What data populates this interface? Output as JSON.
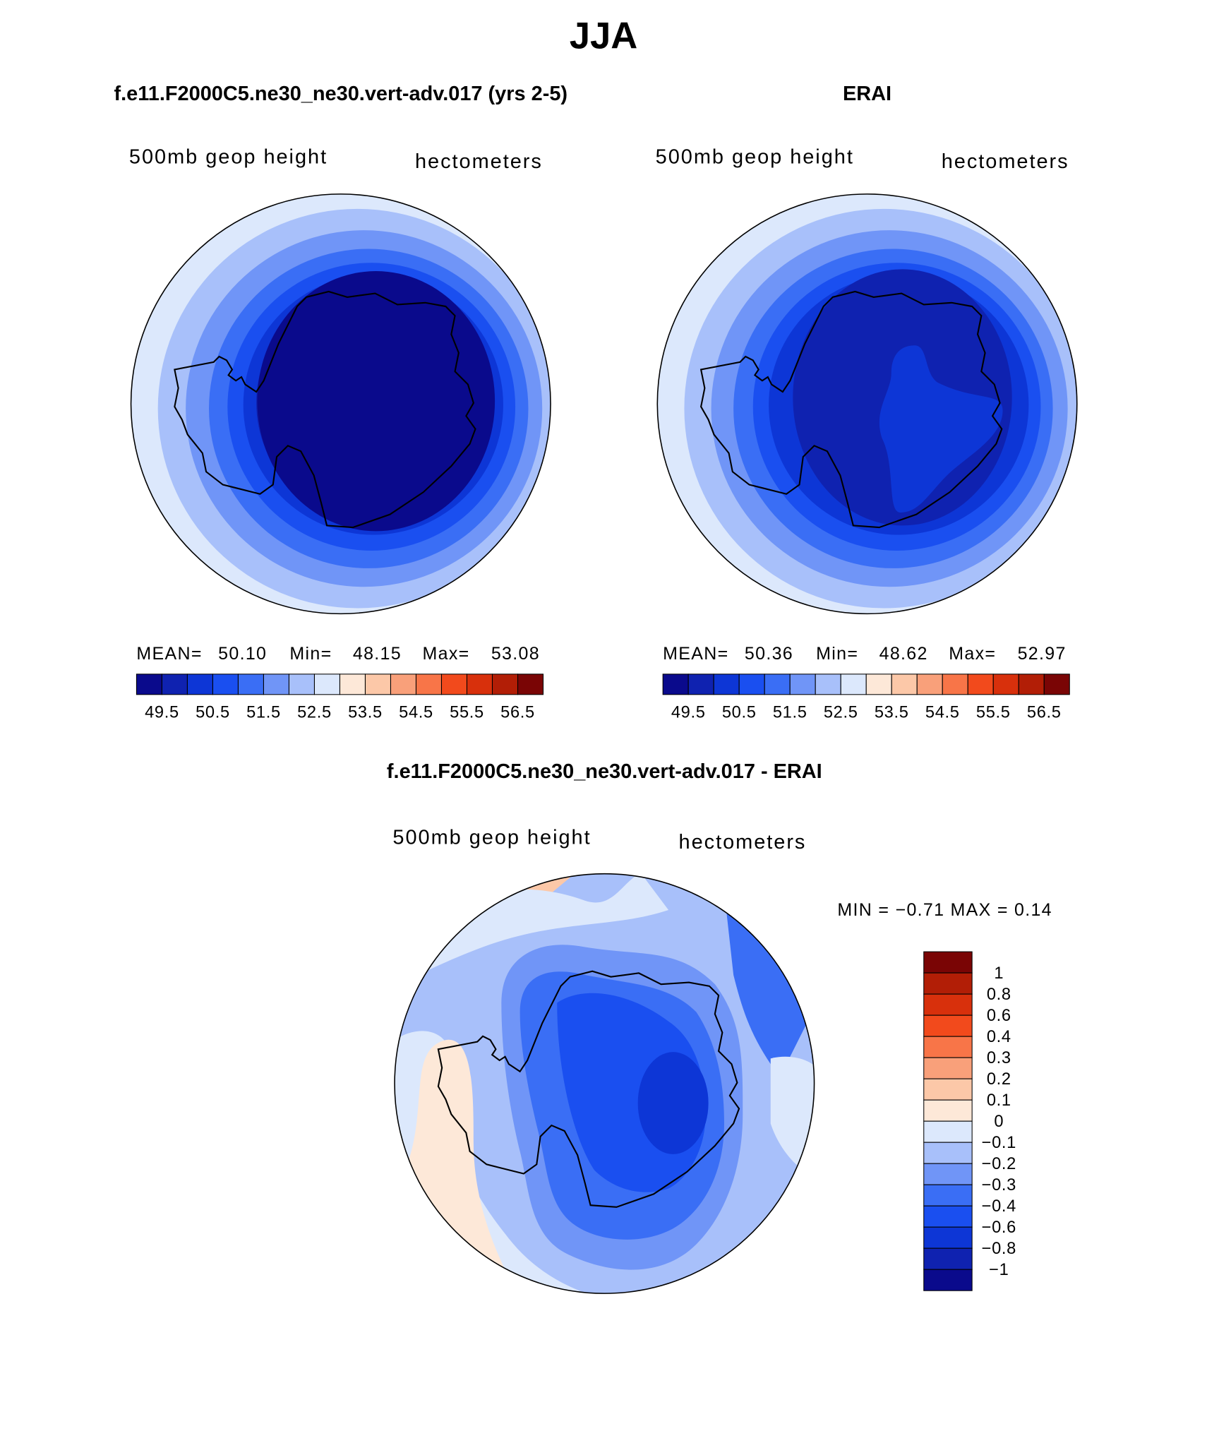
{
  "title": "JJA",
  "panels": [
    {
      "title": "f.e11.F2000C5.ne30_ne30.vert-adv.017 (yrs 2-5)",
      "left_label": "500mb  geop height",
      "right_label": "hectometers",
      "stats": [
        "MEAN=",
        "50.10",
        "Min=",
        "48.15",
        "Max=",
        "53.08"
      ]
    },
    {
      "title": "ERAI",
      "left_label": "500mb  geop height",
      "right_label": "hectometers",
      "stats": [
        "MEAN=",
        "50.36",
        "Min=",
        "48.62",
        "Max=",
        "52.97"
      ]
    }
  ],
  "colorbar": {
    "colors": [
      "#0a0a8c",
      "#0f22b0",
      "#0d36d6",
      "#1a4ff0",
      "#3a6ef5",
      "#7095f7",
      "#a8c0fa",
      "#dce8fc",
      "#fde8d8",
      "#fcc8a8",
      "#f9a07a",
      "#f87548",
      "#f24a1c",
      "#d8300c",
      "#b21e06",
      "#7a0505"
    ],
    "labels": [
      "49.5",
      "50.5",
      "51.5",
      "52.5",
      "53.5",
      "54.5",
      "55.5",
      "56.5"
    ]
  },
  "difference": {
    "title": "f.e11.F2000C5.ne30_ne30.vert-adv.017 - ERAI",
    "left_label": "500mb  geop height",
    "right_label": "hectometers",
    "stats": "MIN =   −0.71  MAX =     0.14",
    "colorbar": {
      "colors": [
        "#7a0505",
        "#b21e06",
        "#d8300c",
        "#f24a1c",
        "#f87548",
        "#f9a07a",
        "#fcc8a8",
        "#fde8d8",
        "#dce8fc",
        "#a8c0fa",
        "#7095f7",
        "#3a6ef5",
        "#1a4ff0",
        "#0d36d6",
        "#0f22b0",
        "#0a0a8c"
      ],
      "labels": [
        "1",
        "0.8",
        "0.6",
        "0.4",
        "0.3",
        "0.2",
        "0.1",
        "0",
        "−0.1",
        "−0.2",
        "−0.3",
        "−0.4",
        "−0.6",
        "−0.8",
        "−1"
      ]
    }
  }
}
